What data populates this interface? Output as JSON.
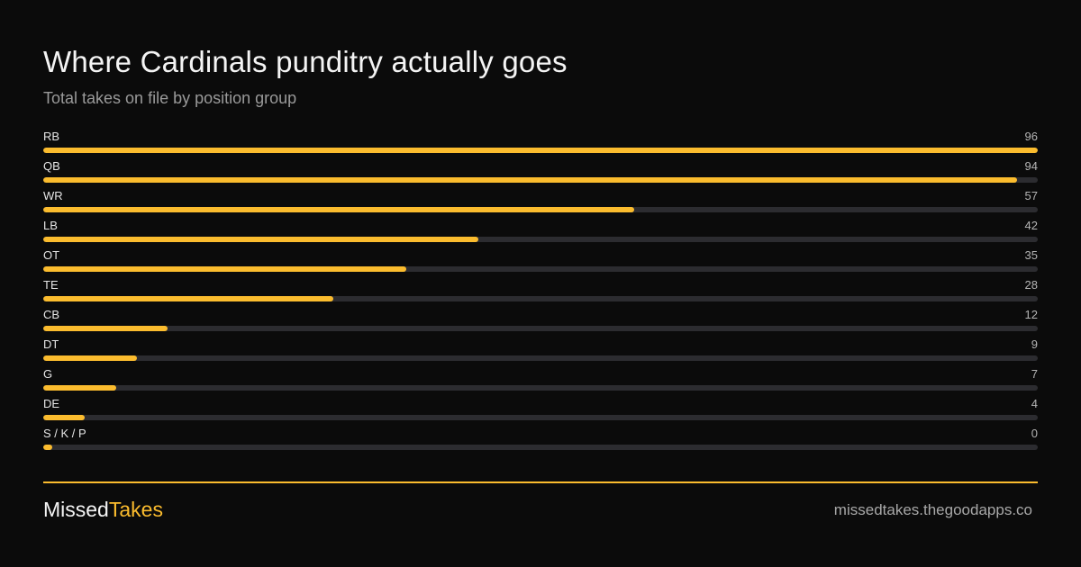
{
  "header": {
    "title": "Where Cardinals punditry actually goes",
    "subtitle": "Total takes on file by position group"
  },
  "colors": {
    "background": "#0b0b0b",
    "accent": "#fbbc2e",
    "track": "#2c2c30"
  },
  "chart_data": {
    "type": "bar",
    "orientation": "horizontal",
    "title": "Where Cardinals punditry actually goes",
    "subtitle": "Total takes on file by position group",
    "categories": [
      "RB",
      "QB",
      "WR",
      "LB",
      "OT",
      "TE",
      "CB",
      "DT",
      "G",
      "DE",
      "S / K / P"
    ],
    "values": [
      96,
      94,
      57,
      42,
      35,
      28,
      12,
      9,
      7,
      4,
      0
    ],
    "xlim": [
      0,
      96
    ],
    "grid": false,
    "legend": "none"
  },
  "footer": {
    "brand_part1": "Missed",
    "brand_part2": "Takes",
    "url": "missedtakes.thegoodapps.co"
  }
}
